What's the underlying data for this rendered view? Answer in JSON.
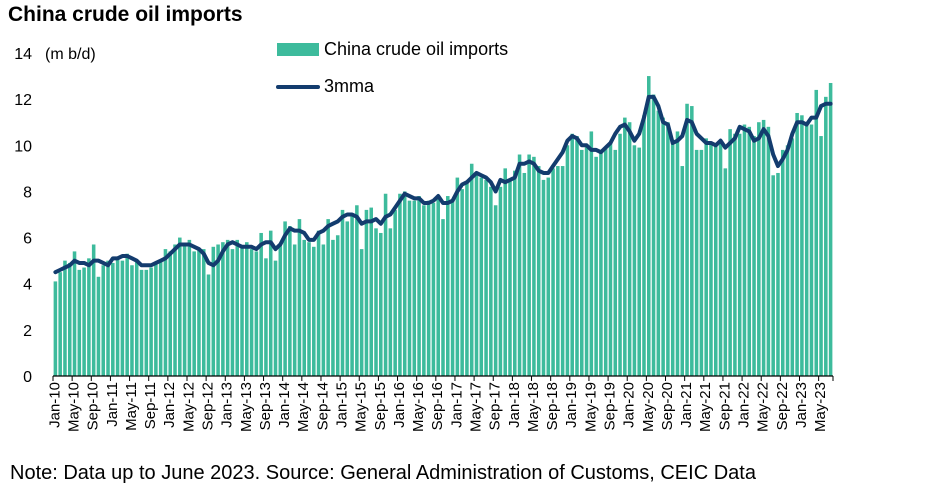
{
  "title": "China crude oil imports",
  "note": "Note: Data up to June 2023. Source: General Administration of Customs, CEIC Data",
  "colors": {
    "bars": "#3dbb9c",
    "line": "#133c6e",
    "axis": "#000000"
  },
  "chart_data": {
    "type": "bar",
    "ylabel": "(m b/d)",
    "ylim": [
      0,
      14
    ],
    "yticks": [
      0,
      2,
      4,
      6,
      8,
      10,
      12,
      14
    ],
    "legend_position": "top-center",
    "x_tick_labels": [
      "Jan-10",
      "May-10",
      "Sep-10",
      "Jan-11",
      "May-11",
      "Sep-11",
      "Jan-12",
      "May-12",
      "Sep-12",
      "Jan-13",
      "May-13",
      "Sep-13",
      "Jan-14",
      "May-14",
      "Sep-14",
      "Jan-15",
      "May-15",
      "Sep-15",
      "Jan-16",
      "May-16",
      "Sep-16",
      "Jan-17",
      "May-17",
      "Sep-17",
      "Jan-18",
      "May-18",
      "Sep-18",
      "Jan-19",
      "May-19",
      "Sep-19",
      "Jan-20",
      "May-20",
      "Sep-20",
      "Jan-21",
      "May-21",
      "Sep-21",
      "Jan-22",
      "May-22",
      "Sep-22",
      "Jan-23",
      "May-23"
    ],
    "x_start": "Jan-10",
    "x_end": "Jun-23",
    "series": [
      {
        "name": "China crude oil imports",
        "type": "bar",
        "values": [
          4.1,
          4.5,
          5.0,
          4.9,
          5.4,
          4.6,
          4.7,
          5.1,
          5.7,
          4.3,
          4.8,
          5.0,
          4.9,
          5.1,
          5.0,
          5.3,
          4.8,
          5.0,
          4.6,
          4.6,
          4.7,
          4.9,
          5.0,
          5.5,
          5.4,
          5.7,
          6.0,
          5.7,
          5.9,
          5.4,
          5.5,
          5.5,
          4.4,
          5.6,
          5.7,
          5.8,
          5.9,
          5.5,
          5.9,
          5.6,
          5.8,
          5.5,
          5.4,
          6.2,
          5.1,
          6.3,
          5.0,
          5.7,
          6.7,
          6.5,
          5.7,
          6.8,
          5.9,
          5.8,
          5.6,
          6.3,
          5.7,
          6.8,
          5.9,
          6.1,
          7.2,
          6.7,
          7.0,
          7.4,
          5.5,
          7.2,
          7.3,
          6.4,
          6.2,
          7.9,
          6.4,
          7.2,
          7.9,
          8.0,
          7.6,
          7.6,
          7.8,
          7.4,
          7.6,
          7.5,
          7.8,
          6.8,
          7.8,
          7.6,
          8.6,
          8.1,
          8.4,
          9.2,
          8.8,
          8.6,
          8.5,
          8.2,
          7.4,
          8.2,
          9.0,
          8.5,
          8.9,
          9.6,
          8.8,
          9.6,
          9.5,
          9.1,
          8.5,
          8.6,
          9.0,
          9.1,
          9.1,
          10.0,
          10.5,
          10.4,
          9.8,
          10.0,
          10.6,
          9.5,
          9.8,
          9.9,
          10.1,
          9.8,
          10.5,
          11.2,
          11.0,
          10.0,
          9.9,
          11.3,
          13.0,
          12.2,
          11.5,
          11.2,
          11.0,
          10.1,
          10.6,
          9.1,
          11.8,
          11.7,
          9.8,
          9.8,
          10.3,
          10.1,
          10.0,
          10.1,
          9.0,
          10.7,
          10.5,
          10.5,
          10.9,
          10.8,
          10.4,
          11.0,
          11.1,
          10.8,
          8.7,
          8.8,
          9.8,
          10.0,
          10.3,
          11.4,
          11.3,
          11.0,
          10.9,
          12.4,
          10.4,
          12.1,
          12.7
        ]
      },
      {
        "name": "3mma",
        "type": "line",
        "values": [
          4.5,
          4.6,
          4.7,
          4.8,
          5.0,
          4.9,
          4.9,
          4.8,
          5.0,
          5.0,
          4.9,
          4.8,
          5.1,
          5.1,
          5.2,
          5.2,
          5.1,
          5.0,
          4.8,
          4.8,
          4.8,
          4.9,
          5.0,
          5.1,
          5.3,
          5.5,
          5.7,
          5.7,
          5.7,
          5.6,
          5.5,
          5.3,
          4.9,
          4.8,
          5.0,
          5.4,
          5.7,
          5.8,
          5.7,
          5.6,
          5.6,
          5.6,
          5.5,
          5.7,
          5.8,
          5.8,
          5.5,
          5.7,
          6.1,
          6.4,
          6.3,
          6.3,
          6.2,
          5.9,
          5.9,
          6.2,
          6.3,
          6.5,
          6.6,
          6.7,
          6.9,
          7.0,
          7.0,
          6.9,
          6.6,
          6.7,
          6.7,
          6.8,
          6.6,
          6.9,
          7.0,
          7.3,
          7.6,
          7.9,
          7.8,
          7.7,
          7.7,
          7.5,
          7.5,
          7.6,
          7.8,
          7.5,
          7.5,
          7.6,
          8.0,
          8.3,
          8.4,
          8.6,
          8.8,
          8.7,
          8.6,
          8.4,
          8.0,
          8.5,
          8.4,
          8.5,
          8.6,
          9.2,
          9.2,
          9.3,
          9.2,
          8.9,
          8.8,
          8.8,
          9.1,
          9.4,
          9.7,
          10.2,
          10.4,
          10.3,
          10.0,
          10.0,
          9.8,
          9.8,
          9.7,
          9.9,
          10.1,
          10.5,
          10.8,
          10.9,
          10.6,
          10.2,
          10.5,
          11.2,
          12.1,
          12.1,
          11.7,
          11.0,
          10.9,
          10.1,
          10.2,
          10.4,
          11.1,
          11.0,
          10.5,
          10.3,
          10.1,
          10.1,
          10.0,
          10.2,
          9.9,
          10.1,
          10.3,
          10.8,
          10.7,
          10.6,
          10.2,
          10.3,
          10.7,
          10.4,
          9.6,
          9.1,
          9.4,
          9.8,
          10.5,
          11.0,
          11.0,
          10.9,
          11.2,
          11.2,
          11.7,
          11.8,
          11.8
        ]
      }
    ]
  }
}
